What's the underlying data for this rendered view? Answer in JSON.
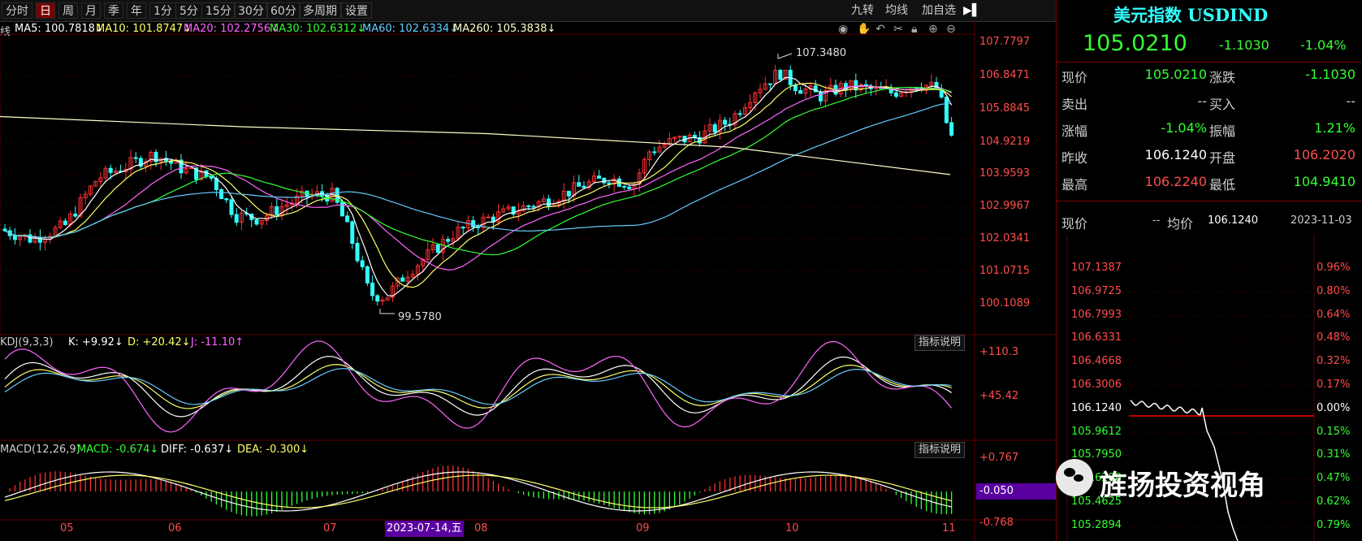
{
  "toolbar": {
    "periods": [
      "分时",
      "日",
      "周",
      "月",
      "季",
      "年",
      "1分",
      "5分",
      "15分",
      "30分",
      "60分",
      "多周期",
      "设置"
    ],
    "active": "日",
    "right_buttons": [
      "九转",
      "均线",
      "加自选"
    ]
  },
  "ma_legend": {
    "prefix": "线",
    "items": [
      {
        "label": "MA5: 100.7818↓",
        "color": "#ffffff"
      },
      {
        "label": "MA10: 101.8747↓",
        "color": "#ffff66"
      },
      {
        "label": "MA20: 102.2756↓",
        "color": "#ff66ff"
      },
      {
        "label": "MA30: 102.6312↓",
        "color": "#33ff33"
      },
      {
        "label": "MA60: 102.6334↓",
        "color": "#66ccff"
      },
      {
        "label": "MA260: 105.3838↓",
        "color": "#ffffcc"
      }
    ]
  },
  "main_axis": [
    "107.7797",
    "106.8471",
    "105.8845",
    "104.9219",
    "103.9593",
    "102.9967",
    "102.0341",
    "101.0715",
    "100.1089"
  ],
  "annotations": {
    "high": "107.3480",
    "low": "99.5780"
  },
  "kdj": {
    "title": "KDJ(9,3,3)",
    "k": "K: +9.92↓",
    "d": "D: +20.42↓",
    "j": "J: -11.10↑",
    "axis": [
      "+110.3",
      "+45.42"
    ],
    "btn": "指标说明"
  },
  "macd": {
    "title": "MACD(12,26,9)",
    "macd": "MACD: -0.674↓",
    "diff": "DIFF: -0.637↓",
    "dea": "DEA: -0.300↓",
    "axis": [
      "+0.767",
      "-0.050",
      "-0.768"
    ],
    "btn": "指标说明"
  },
  "x_axis": {
    "labels": [
      "05",
      "06",
      "07",
      "08",
      "09",
      "10",
      "11"
    ],
    "cursor_date": "2023-07-14,五"
  },
  "quote": {
    "name": "美元指数 USDIND",
    "price": "105.0210",
    "change": "-1.1030",
    "pct": "-1.04%",
    "rows": [
      {
        "l1": "现价",
        "v1": "105.0210",
        "l2": "涨跌",
        "v2": "-1.1030",
        "c1": "#33ff33",
        "c2": "#33ff33"
      },
      {
        "l1": "卖出",
        "v1": "--",
        "l2": "买入",
        "v2": "--",
        "c1": "#cccccc",
        "c2": "#cccccc"
      },
      {
        "l1": "涨幅",
        "v1": "-1.04%",
        "l2": "振幅",
        "v2": "1.21%",
        "c1": "#33ff33",
        "c2": "#33ff33"
      },
      {
        "l1": "昨收",
        "v1": "106.1240",
        "l2": "开盘",
        "v2": "106.2020",
        "c1": "#ffffff",
        "c2": "#ff4d4d"
      },
      {
        "l1": "最高",
        "v1": "106.2240",
        "l2": "最低",
        "v2": "104.9410",
        "c1": "#ff4d4d",
        "c2": "#33ff33"
      }
    ]
  },
  "mini": {
    "now_label": "现价",
    "now_value": "--",
    "avg_label": "均价",
    "avg_value": "106.1240",
    "date": "2023-11-03",
    "left_axis": [
      "107.1387",
      "106.9725",
      "106.7993",
      "106.6331",
      "106.4668",
      "106.3006",
      "106.1240",
      "105.9612",
      "105.7950",
      "105.6288",
      "105.4625",
      "105.2894"
    ],
    "right_axis": [
      "0.96%",
      "0.80%",
      "0.64%",
      "0.48%",
      "0.32%",
      "0.17%",
      "0.00%",
      "0.15%",
      "0.31%",
      "0.47%",
      "0.62%",
      "0.79%"
    ]
  },
  "watermark": "旌扬投资视角",
  "colors": {
    "up": "#ff3030",
    "down": "#33ffff",
    "bg": "#000000",
    "grid": "#5a0000"
  }
}
